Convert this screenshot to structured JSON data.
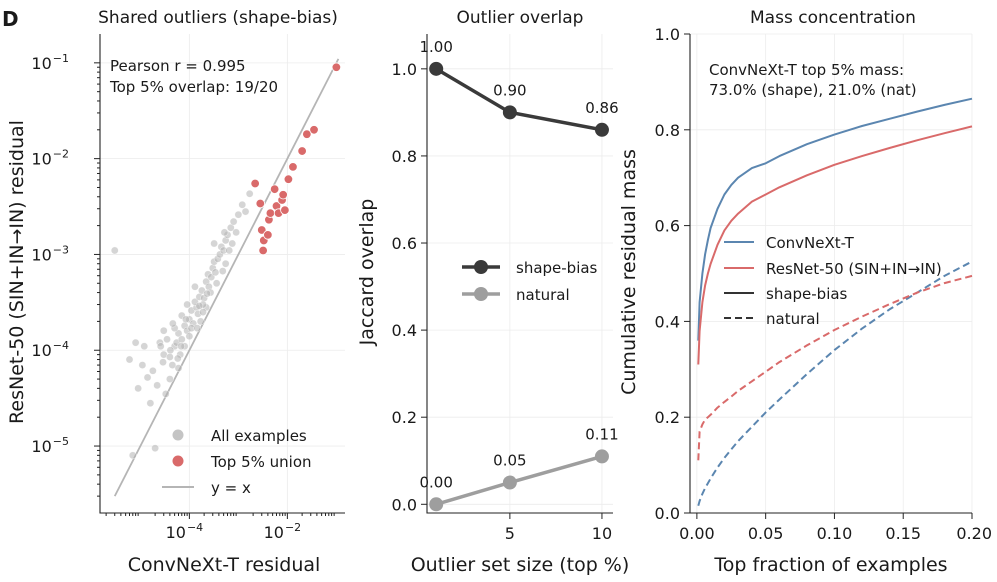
{
  "panel_letter": "D",
  "chart_data": [
    {
      "type": "scatter",
      "title": "Shared outliers (shape-bias)",
      "xlabel": "ConvNeXt-T residual",
      "ylabel": "ResNet-50 (SIN+IN→IN) residual",
      "xscale": "log",
      "yscale": "log",
      "xlim": [
        1.5e-06,
        0.15
      ],
      "ylim": [
        2e-06,
        0.2
      ],
      "xticks": [
        {
          "value": 0.0001,
          "base": "10",
          "exp": "−4"
        },
        {
          "value": 0.01,
          "base": "10",
          "exp": "−2"
        }
      ],
      "yticks": [
        {
          "value": 1e-05,
          "base": "10",
          "exp": "−5"
        },
        {
          "value": 0.0001,
          "base": "10",
          "exp": "−4"
        },
        {
          "value": 0.001,
          "base": "10",
          "exp": "−3"
        },
        {
          "value": 0.01,
          "base": "10",
          "exp": "−2"
        },
        {
          "value": 0.1,
          "base": "10",
          "exp": "−1"
        }
      ],
      "annotation": [
        "Pearson r = 0.995",
        "Top 5% overlap: 19/20"
      ],
      "legend": {
        "placement": "lower-right",
        "entries": [
          "All examples",
          "Top 5% union",
          "y = x"
        ]
      },
      "series": [
        {
          "name": "All examples",
          "color": "#b3b3b3",
          "approximate": true,
          "points": [
            [
              3e-06,
              0.0011
            ],
            [
              8e-06,
              0.00012
            ],
            [
              1.2e-05,
              0.00011
            ],
            [
              1.6e-05,
              2.8e-05
            ],
            [
              6e-06,
              8e-05
            ],
            [
              2.2e-05,
              4.3e-05
            ],
            [
              1.8e-05,
              6.1e-05
            ],
            [
              3e-05,
              9e-05
            ],
            [
              2.5e-05,
              0.00012
            ],
            [
              4e-05,
              8.5e-05
            ],
            [
              3.5e-05,
              0.00013
            ],
            [
              5e-05,
              0.00011
            ],
            [
              4.5e-05,
              7e-05
            ],
            [
              6e-05,
              0.00015
            ],
            [
              5.5e-05,
              0.00012
            ],
            [
              7e-05,
              0.00013
            ],
            [
              8e-05,
              0.00018
            ],
            [
              6.5e-05,
              9e-05
            ],
            [
              9e-05,
              0.00016
            ],
            [
              0.0001,
              0.00021
            ],
            [
              0.00012,
              0.00019
            ],
            [
              0.00011,
              0.00026
            ],
            [
              0.00014,
              0.00028
            ],
            [
              0.00013,
              0.00032
            ],
            [
              0.00016,
              0.00036
            ],
            [
              0.00015,
              0.00024
            ],
            [
              0.00018,
              0.00042
            ],
            [
              0.0002,
              0.00035
            ],
            [
              0.00022,
              0.00052
            ],
            [
              0.00025,
              0.00046
            ],
            [
              0.00024,
              0.00062
            ],
            [
              0.00028,
              0.00058
            ],
            [
              0.0003,
              0.00072
            ],
            [
              0.00034,
              0.00065
            ],
            [
              0.00032,
              0.00084
            ],
            [
              0.00038,
              0.0009
            ],
            [
              0.00042,
              0.001
            ],
            [
              0.00045,
              0.0012
            ],
            [
              0.0005,
              0.0011
            ],
            [
              0.00055,
              0.0014
            ],
            [
              0.0006,
              0.0016
            ],
            [
              0.0007,
              0.0019
            ],
            [
              0.0008,
              0.0022
            ],
            [
              5e-05,
              0.00017
            ],
            [
              4e-05,
              5e-05
            ],
            [
              7e-05,
              0.00023
            ],
            [
              0.0001,
              0.00014
            ],
            [
              9e-05,
              0.0003
            ],
            [
              0.00027,
              0.0004
            ],
            [
              0.00017,
              0.0002
            ],
            [
              6e-05,
              6.5e-05
            ],
            [
              3e-05,
              0.00016
            ],
            [
              0.00013,
              0.00046
            ],
            [
              0.00022,
              0.00028
            ],
            [
              0.00036,
              0.0005
            ],
            [
              0.00055,
              0.0008
            ],
            [
              8e-05,
              0.00011
            ],
            [
              0.00011,
              0.00017
            ],
            [
              0.00019,
              0.0003
            ],
            [
              2.6e-05,
              0.00011
            ],
            [
              0.00052,
              0.0017
            ],
            [
              0.00032,
              0.0013
            ],
            [
              2e-05,
              9.5e-06
            ],
            [
              7e-06,
              8e-06
            ],
            [
              1.4e-05,
              5.2e-05
            ],
            [
              1.1e-05,
              7e-05
            ],
            [
              3.3e-05,
              3.5e-05
            ],
            [
              4.6e-05,
              0.00019
            ],
            [
              6.8e-05,
              0.00011
            ],
            [
              0.000145,
              0.00017
            ],
            [
              0.00023,
              0.00039
            ],
            [
              0.00048,
              0.00067
            ],
            [
              0.00065,
              0.0011
            ],
            [
              0.00075,
              0.0013
            ],
            [
              0.0009,
              0.0017
            ],
            [
              0.001,
              0.0026
            ],
            [
              0.0012,
              0.0033
            ],
            [
              0.0014,
              0.0028
            ],
            [
              0.0017,
              0.0043
            ],
            [
              0.00016,
              0.00029
            ],
            [
              0.00019,
              0.00025
            ],
            [
              8.5e-05,
              0.00021
            ],
            [
              4.1e-05,
              0.0001
            ],
            [
              2.9e-05,
              7.5e-05
            ],
            [
              9e-06,
              4e-05
            ],
            [
              5.8e-05,
              8.2e-05
            ]
          ]
        },
        {
          "name": "Top 5% union",
          "color": "#d96a6a",
          "points": [
            [
              0.0022,
              0.0055
            ],
            [
              0.0028,
              0.0034
            ],
            [
              0.003,
              0.0018
            ],
            [
              0.0032,
              0.0011
            ],
            [
              0.0033,
              0.0014
            ],
            [
              0.004,
              0.0016
            ],
            [
              0.0042,
              0.0023
            ],
            [
              0.0045,
              0.0027
            ],
            [
              0.0055,
              0.0048
            ],
            [
              0.006,
              0.0032
            ],
            [
              0.0066,
              0.0027
            ],
            [
              0.0078,
              0.0037
            ],
            [
              0.0082,
              0.0042
            ],
            [
              0.0089,
              0.0029
            ],
            [
              0.0105,
              0.0061
            ],
            [
              0.013,
              0.0082
            ],
            [
              0.02,
              0.012
            ],
            [
              0.025,
              0.018
            ],
            [
              0.035,
              0.02
            ],
            [
              0.1,
              0.09
            ]
          ]
        }
      ],
      "reference_line": {
        "name": "y = x",
        "color": "#b5b5b5"
      }
    },
    {
      "type": "line",
      "title": "Outlier overlap",
      "xlabel": "Outlier set size (top %)",
      "ylabel": "Jaccard overlap",
      "x": [
        1,
        5,
        10
      ],
      "xlim": [
        0.5,
        10.6
      ],
      "ylim": [
        -0.02,
        1.08
      ],
      "xticks": [
        "5",
        "10"
      ],
      "xtick_values": [
        5,
        10
      ],
      "yticks": [
        "0.0",
        "0.2",
        "0.4",
        "0.6",
        "0.8",
        "1.0"
      ],
      "legend": {
        "placement": "center-right",
        "entries": [
          "shape-bias",
          "natural"
        ]
      },
      "series": [
        {
          "name": "shape-bias",
          "color": "#3a3a3a",
          "values": [
            1.0,
            0.9,
            0.86
          ],
          "labels": [
            "1.00",
            "0.90",
            "0.86"
          ]
        },
        {
          "name": "natural",
          "color": "#9e9e9e",
          "values": [
            0.0,
            0.05,
            0.11
          ],
          "labels": [
            "0.00",
            "0.05",
            "0.11"
          ]
        }
      ]
    },
    {
      "type": "line",
      "title": "Mass concentration",
      "xlabel": "Top fraction of examples",
      "ylabel": "Cumulative residual mass",
      "xlim": [
        -0.005,
        0.2
      ],
      "ylim": [
        0.0,
        1.0
      ],
      "xticks": [
        "0.00",
        "0.05",
        "0.10",
        "0.15",
        "0.20"
      ],
      "yticks": [
        "0.0",
        "0.2",
        "0.4",
        "0.6",
        "0.8",
        "1.0"
      ],
      "annotation": [
        "ConvNeXt-T top 5% mass:",
        "73.0% (shape), 21.0% (nat)"
      ],
      "legend": {
        "placement": "center-right",
        "entries": [
          "ConvNeXt-T",
          "ResNet-50 (SIN+IN→IN)",
          "shape-bias",
          "natural"
        ]
      },
      "series": [
        {
          "name": "ConvNeXt-T (shape-bias)",
          "color": "#5b86b0",
          "style": "solid",
          "x": [
            0.001,
            0.002,
            0.004,
            0.006,
            0.008,
            0.01,
            0.015,
            0.02,
            0.025,
            0.03,
            0.04,
            0.05,
            0.06,
            0.08,
            0.1,
            0.12,
            0.14,
            0.16,
            0.18,
            0.2
          ],
          "values": [
            0.36,
            0.44,
            0.5,
            0.54,
            0.57,
            0.595,
            0.635,
            0.665,
            0.685,
            0.7,
            0.72,
            0.73,
            0.745,
            0.77,
            0.79,
            0.808,
            0.823,
            0.838,
            0.852,
            0.865
          ]
        },
        {
          "name": "ResNet-50 (SIN+IN→IN) (shape-bias)",
          "color": "#d96a6a",
          "style": "solid",
          "x": [
            0.001,
            0.002,
            0.004,
            0.006,
            0.008,
            0.01,
            0.015,
            0.02,
            0.025,
            0.03,
            0.04,
            0.05,
            0.06,
            0.08,
            0.1,
            0.12,
            0.14,
            0.16,
            0.18,
            0.2
          ],
          "values": [
            0.31,
            0.38,
            0.44,
            0.475,
            0.5,
            0.52,
            0.56,
            0.59,
            0.61,
            0.625,
            0.65,
            0.665,
            0.68,
            0.705,
            0.727,
            0.745,
            0.762,
            0.778,
            0.793,
            0.807
          ]
        },
        {
          "name": "ConvNeXt-T (natural)",
          "color": "#5b86b0",
          "style": "dashed",
          "x": [
            0.001,
            0.002,
            0.004,
            0.006,
            0.008,
            0.01,
            0.015,
            0.02,
            0.025,
            0.03,
            0.04,
            0.05,
            0.06,
            0.08,
            0.1,
            0.12,
            0.14,
            0.16,
            0.18,
            0.2
          ],
          "values": [
            0.015,
            0.025,
            0.04,
            0.052,
            0.062,
            0.072,
            0.095,
            0.115,
            0.133,
            0.15,
            0.18,
            0.21,
            0.237,
            0.29,
            0.34,
            0.385,
            0.425,
            0.46,
            0.495,
            0.525
          ]
        },
        {
          "name": "ResNet-50 (SIN+IN→IN) (natural)",
          "color": "#d96a6a",
          "style": "dashed",
          "x": [
            0.001,
            0.002,
            0.004,
            0.006,
            0.008,
            0.01,
            0.015,
            0.02,
            0.025,
            0.03,
            0.04,
            0.05,
            0.06,
            0.08,
            0.1,
            0.12,
            0.14,
            0.16,
            0.18,
            0.2
          ],
          "values": [
            0.11,
            0.17,
            0.185,
            0.195,
            0.2,
            0.205,
            0.22,
            0.232,
            0.243,
            0.255,
            0.275,
            0.295,
            0.315,
            0.35,
            0.382,
            0.41,
            0.436,
            0.46,
            0.48,
            0.495
          ]
        }
      ]
    }
  ]
}
